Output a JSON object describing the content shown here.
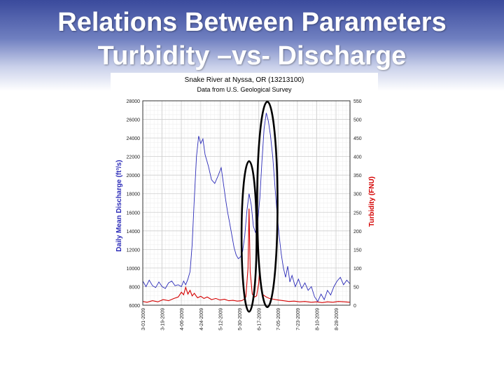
{
  "slide": {
    "title_line1": "Relations Between Parameters",
    "title_line2": "Turbidity –vs- Discharge"
  },
  "chart_data": {
    "type": "line",
    "title": "Snake River at Nyssa, OR (13213100)",
    "subtitle": "Data from U.S. Geological Survey",
    "ylabel": "Daily Mean Discharge (ft³/s)",
    "y2label": "Turbidity (FNU)",
    "ylim": [
      6000,
      28000
    ],
    "y2lim": [
      0,
      550
    ],
    "yticks": [
      "28000",
      "26000",
      "24000",
      "22000",
      "20000",
      "18000",
      "16000",
      "14000",
      "12000",
      "10000",
      "8000",
      "6000"
    ],
    "y2ticks": [
      "550",
      "500",
      "450",
      "400",
      "350",
      "300",
      "250",
      "200",
      "150",
      "100",
      "50",
      "0"
    ],
    "xlim": [
      "2009-03-01",
      "2009-09-10"
    ],
    "xticks": [
      "3-01-2009",
      "3-19-2009",
      "4-06-2009",
      "4-24-2009",
      "5-12-2009",
      "5-30-2009",
      "6-17-2009",
      "7-05-2009",
      "7-23-2009",
      "8-10-2009",
      "8-28-2009"
    ],
    "grid": true,
    "series": [
      {
        "name": "Discharge",
        "axis": "left",
        "color": "#2b2bb8",
        "points": [
          [
            "2009-03-01",
            8600
          ],
          [
            "2009-03-04",
            8000
          ],
          [
            "2009-03-07",
            8700
          ],
          [
            "2009-03-10",
            8100
          ],
          [
            "2009-03-13",
            7900
          ],
          [
            "2009-03-16",
            8500
          ],
          [
            "2009-03-19",
            8000
          ],
          [
            "2009-03-22",
            7800
          ],
          [
            "2009-03-25",
            8400
          ],
          [
            "2009-03-28",
            8600
          ],
          [
            "2009-03-31",
            8100
          ],
          [
            "2009-04-03",
            8200
          ],
          [
            "2009-04-06",
            8000
          ],
          [
            "2009-04-08",
            8600
          ],
          [
            "2009-04-10",
            8200
          ],
          [
            "2009-04-12",
            8800
          ],
          [
            "2009-04-14",
            9600
          ],
          [
            "2009-04-16",
            12500
          ],
          [
            "2009-04-18",
            17500
          ],
          [
            "2009-04-20",
            22000
          ],
          [
            "2009-04-22",
            24200
          ],
          [
            "2009-04-24",
            23400
          ],
          [
            "2009-04-26",
            23900
          ],
          [
            "2009-04-28",
            22200
          ],
          [
            "2009-05-01",
            21000
          ],
          [
            "2009-05-04",
            19500
          ],
          [
            "2009-05-07",
            19100
          ],
          [
            "2009-05-10",
            19900
          ],
          [
            "2009-05-13",
            20800
          ],
          [
            "2009-05-15",
            19200
          ],
          [
            "2009-05-17",
            17500
          ],
          [
            "2009-05-19",
            16000
          ],
          [
            "2009-05-21",
            14800
          ],
          [
            "2009-05-23",
            13500
          ],
          [
            "2009-05-25",
            12200
          ],
          [
            "2009-05-27",
            11400
          ],
          [
            "2009-05-29",
            11000
          ],
          [
            "2009-05-31",
            11200
          ],
          [
            "2009-06-02",
            11800
          ],
          [
            "2009-06-04",
            13500
          ],
          [
            "2009-06-06",
            16200
          ],
          [
            "2009-06-08",
            18000
          ],
          [
            "2009-06-10",
            16800
          ],
          [
            "2009-06-12",
            14500
          ],
          [
            "2009-06-14",
            13800
          ],
          [
            "2009-06-16",
            15000
          ],
          [
            "2009-06-18",
            17500
          ],
          [
            "2009-06-20",
            21500
          ],
          [
            "2009-06-22",
            25000
          ],
          [
            "2009-06-24",
            26700
          ],
          [
            "2009-06-26",
            25800
          ],
          [
            "2009-06-28",
            24200
          ],
          [
            "2009-06-30",
            22000
          ],
          [
            "2009-07-02",
            19000
          ],
          [
            "2009-07-04",
            16000
          ],
          [
            "2009-07-06",
            13500
          ],
          [
            "2009-07-08",
            11500
          ],
          [
            "2009-07-10",
            10000
          ],
          [
            "2009-07-12",
            9000
          ],
          [
            "2009-07-14",
            10200
          ],
          [
            "2009-07-16",
            8500
          ],
          [
            "2009-07-18",
            9200
          ],
          [
            "2009-07-21",
            8000
          ],
          [
            "2009-07-24",
            8800
          ],
          [
            "2009-07-27",
            7800
          ],
          [
            "2009-07-30",
            8400
          ],
          [
            "2009-08-02",
            7600
          ],
          [
            "2009-08-05",
            8000
          ],
          [
            "2009-08-08",
            6900
          ],
          [
            "2009-08-11",
            6400
          ],
          [
            "2009-08-14",
            7200
          ],
          [
            "2009-08-17",
            6600
          ],
          [
            "2009-08-20",
            7600
          ],
          [
            "2009-08-23",
            7100
          ],
          [
            "2009-08-26",
            8000
          ],
          [
            "2009-08-29",
            8600
          ],
          [
            "2009-09-01",
            9000
          ],
          [
            "2009-09-04",
            8200
          ],
          [
            "2009-09-07",
            8700
          ],
          [
            "2009-09-10",
            8300
          ]
        ]
      },
      {
        "name": "Turbidity",
        "axis": "right",
        "color": "#d40000",
        "points": [
          [
            "2009-03-01",
            10
          ],
          [
            "2009-03-05",
            8
          ],
          [
            "2009-03-10",
            12
          ],
          [
            "2009-03-15",
            9
          ],
          [
            "2009-03-20",
            15
          ],
          [
            "2009-03-25",
            12
          ],
          [
            "2009-03-30",
            18
          ],
          [
            "2009-04-03",
            22
          ],
          [
            "2009-04-06",
            35
          ],
          [
            "2009-04-08",
            28
          ],
          [
            "2009-04-10",
            48
          ],
          [
            "2009-04-12",
            30
          ],
          [
            "2009-04-14",
            40
          ],
          [
            "2009-04-16",
            25
          ],
          [
            "2009-04-18",
            32
          ],
          [
            "2009-04-21",
            20
          ],
          [
            "2009-04-24",
            24
          ],
          [
            "2009-04-27",
            18
          ],
          [
            "2009-04-30",
            22
          ],
          [
            "2009-05-04",
            15
          ],
          [
            "2009-05-08",
            18
          ],
          [
            "2009-05-12",
            14
          ],
          [
            "2009-05-16",
            16
          ],
          [
            "2009-05-20",
            12
          ],
          [
            "2009-05-24",
            13
          ],
          [
            "2009-05-28",
            11
          ],
          [
            "2009-06-01",
            12
          ],
          [
            "2009-06-03",
            15
          ],
          [
            "2009-06-05",
            22
          ],
          [
            "2009-06-07",
            100
          ],
          [
            "2009-06-08",
            260
          ],
          [
            "2009-06-09",
            90
          ],
          [
            "2009-06-11",
            30
          ],
          [
            "2009-06-13",
            22
          ],
          [
            "2009-06-15",
            25
          ],
          [
            "2009-06-17",
            60
          ],
          [
            "2009-06-18",
            100
          ],
          [
            "2009-06-19",
            45
          ],
          [
            "2009-06-21",
            28
          ],
          [
            "2009-06-24",
            22
          ],
          [
            "2009-06-27",
            18
          ],
          [
            "2009-07-01",
            16
          ],
          [
            "2009-07-05",
            14
          ],
          [
            "2009-07-10",
            12
          ],
          [
            "2009-07-15",
            10
          ],
          [
            "2009-07-20",
            11
          ],
          [
            "2009-07-25",
            9
          ],
          [
            "2009-07-30",
            10
          ],
          [
            "2009-08-05",
            8
          ],
          [
            "2009-08-10",
            9
          ],
          [
            "2009-08-15",
            7
          ],
          [
            "2009-08-20",
            9
          ],
          [
            "2009-08-25",
            8
          ],
          [
            "2009-08-30",
            10
          ],
          [
            "2009-09-05",
            9
          ],
          [
            "2009-09-10",
            8
          ]
        ]
      }
    ],
    "annotations": [
      {
        "shape": "ellipse",
        "center": [
          "2009-06-08",
          10500
        ],
        "span_x_days": 14,
        "span_y": [
          5300,
          21500
        ]
      },
      {
        "shape": "ellipse",
        "center": [
          "2009-06-25",
          17000
        ],
        "span_x_days": 19,
        "span_y": [
          5800,
          27900
        ]
      }
    ]
  }
}
